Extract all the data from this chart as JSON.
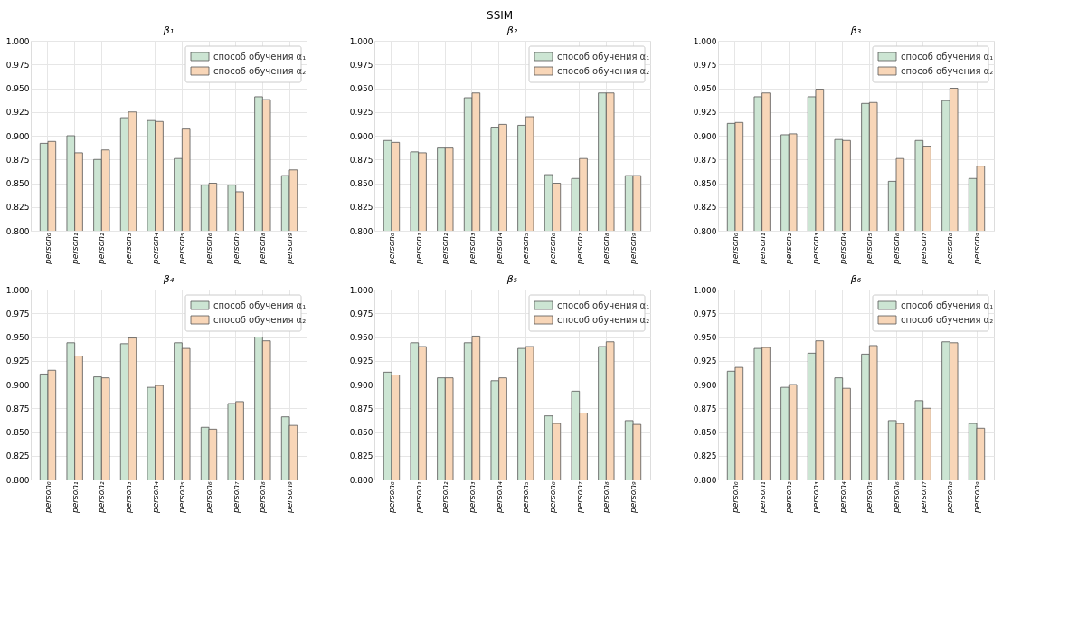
{
  "chart_data": [
    {
      "type": "bar",
      "title": "β₁",
      "annotations": [
        "SSIM"
      ],
      "categories": [
        "person₀",
        "person₁",
        "person₂",
        "person₃",
        "person₄",
        "person₅",
        "person₆",
        "person₇",
        "person₈",
        "person₉"
      ],
      "ylim": [
        0.8,
        1.0
      ],
      "yticks": [
        {
          "value": 0.8,
          "label": "0.800"
        },
        {
          "value": 0.825,
          "label": "0.825"
        },
        {
          "value": 0.85,
          "label": "0.850"
        },
        {
          "value": 0.875,
          "label": "0.875"
        },
        {
          "value": 0.9,
          "label": "0.900"
        },
        {
          "value": 0.925,
          "label": "0.925"
        },
        {
          "value": 0.95,
          "label": "0.950"
        },
        {
          "value": 0.975,
          "label": "0.975"
        },
        {
          "value": 1.0,
          "label": "1.000"
        }
      ],
      "grid": true,
      "legend": "top right",
      "series": [
        {
          "name": "способ обучения α₁",
          "color": "#cce5d3",
          "values": [
            0.892,
            0.9,
            0.875,
            0.919,
            0.916,
            0.876,
            0.848,
            0.848,
            0.941,
            0.858
          ]
        },
        {
          "name": "способ обучения α₂",
          "color": "#f8d6b8",
          "values": [
            0.894,
            0.882,
            0.885,
            0.925,
            0.915,
            0.907,
            0.85,
            0.841,
            0.938,
            0.864
          ]
        }
      ]
    },
    {
      "type": "bar",
      "title": "β₂",
      "categories": [
        "person₀",
        "person₁",
        "person₂",
        "person₃",
        "person₄",
        "person₅",
        "person₆",
        "person₇",
        "person₈",
        "person₉"
      ],
      "ylim": [
        0.8,
        1.0
      ],
      "yticks": [
        {
          "value": 0.8,
          "label": "0.800"
        },
        {
          "value": 0.825,
          "label": "0.825"
        },
        {
          "value": 0.85,
          "label": "0.850"
        },
        {
          "value": 0.875,
          "label": "0.875"
        },
        {
          "value": 0.9,
          "label": "0.900"
        },
        {
          "value": 0.925,
          "label": "0.925"
        },
        {
          "value": 0.95,
          "label": "0.950"
        },
        {
          "value": 0.975,
          "label": "0.975"
        },
        {
          "value": 1.0,
          "label": "1.000"
        }
      ],
      "grid": true,
      "legend": "top right",
      "series": [
        {
          "name": "способ обучения α₁",
          "color": "#cce5d3",
          "values": [
            0.895,
            0.883,
            0.887,
            0.94,
            0.909,
            0.911,
            0.859,
            0.855,
            0.945,
            0.858
          ]
        },
        {
          "name": "способ обучения α₂",
          "color": "#f8d6b8",
          "values": [
            0.893,
            0.882,
            0.887,
            0.945,
            0.912,
            0.92,
            0.85,
            0.876,
            0.945,
            0.858
          ]
        }
      ]
    },
    {
      "type": "bar",
      "title": "β₃",
      "categories": [
        "person₀",
        "person₁",
        "person₂",
        "person₃",
        "person₄",
        "person₅",
        "person₆",
        "person₇",
        "person₈",
        "person₉"
      ],
      "ylim": [
        0.8,
        1.0
      ],
      "yticks": [
        {
          "value": 0.8,
          "label": "0.800"
        },
        {
          "value": 0.825,
          "label": "0.825"
        },
        {
          "value": 0.85,
          "label": "0.850"
        },
        {
          "value": 0.875,
          "label": "0.875"
        },
        {
          "value": 0.9,
          "label": "0.900"
        },
        {
          "value": 0.925,
          "label": "0.925"
        },
        {
          "value": 0.95,
          "label": "0.950"
        },
        {
          "value": 0.975,
          "label": "0.975"
        },
        {
          "value": 1.0,
          "label": "1.000"
        }
      ],
      "grid": true,
      "legend": "top right",
      "series": [
        {
          "name": "способ обучения α₁",
          "color": "#cce5d3",
          "values": [
            0.913,
            0.941,
            0.901,
            0.941,
            0.896,
            0.934,
            0.852,
            0.895,
            0.937,
            0.855
          ]
        },
        {
          "name": "способ обучения α₂",
          "color": "#f8d6b8",
          "values": [
            0.914,
            0.945,
            0.902,
            0.949,
            0.895,
            0.935,
            0.876,
            0.889,
            0.95,
            0.868
          ]
        }
      ]
    },
    {
      "type": "bar",
      "title": "β₄",
      "categories": [
        "person₀",
        "person₁",
        "person₂",
        "person₃",
        "person₄",
        "person₅",
        "person₆",
        "person₇",
        "person₈",
        "person₉"
      ],
      "ylim": [
        0.8,
        1.0
      ],
      "yticks": [
        {
          "value": 0.8,
          "label": "0.800"
        },
        {
          "value": 0.825,
          "label": "0.825"
        },
        {
          "value": 0.85,
          "label": "0.850"
        },
        {
          "value": 0.875,
          "label": "0.875"
        },
        {
          "value": 0.9,
          "label": "0.900"
        },
        {
          "value": 0.925,
          "label": "0.925"
        },
        {
          "value": 0.95,
          "label": "0.950"
        },
        {
          "value": 0.975,
          "label": "0.975"
        },
        {
          "value": 1.0,
          "label": "1.000"
        }
      ],
      "grid": true,
      "legend": "top right",
      "series": [
        {
          "name": "способ обучения α₁",
          "color": "#cce5d3",
          "values": [
            0.911,
            0.944,
            0.908,
            0.943,
            0.897,
            0.944,
            0.855,
            0.88,
            0.95,
            0.866
          ]
        },
        {
          "name": "способ обучения α₂",
          "color": "#f8d6b8",
          "values": [
            0.915,
            0.93,
            0.907,
            0.949,
            0.899,
            0.938,
            0.853,
            0.882,
            0.946,
            0.857
          ]
        }
      ]
    },
    {
      "type": "bar",
      "title": "β₅",
      "categories": [
        "person₀",
        "person₁",
        "person₂",
        "person₃",
        "person₄",
        "person₅",
        "person₆",
        "person₇",
        "person₈",
        "person₉"
      ],
      "ylim": [
        0.8,
        1.0
      ],
      "yticks": [
        {
          "value": 0.8,
          "label": "0.800"
        },
        {
          "value": 0.825,
          "label": "0.825"
        },
        {
          "value": 0.85,
          "label": "0.850"
        },
        {
          "value": 0.875,
          "label": "0.875"
        },
        {
          "value": 0.9,
          "label": "0.900"
        },
        {
          "value": 0.925,
          "label": "0.925"
        },
        {
          "value": 0.95,
          "label": "0.950"
        },
        {
          "value": 0.975,
          "label": "0.975"
        },
        {
          "value": 1.0,
          "label": "1.000"
        }
      ],
      "grid": true,
      "legend": "top right",
      "series": [
        {
          "name": "способ обучения α₁",
          "color": "#cce5d3",
          "values": [
            0.913,
            0.944,
            0.907,
            0.944,
            0.904,
            0.938,
            0.867,
            0.893,
            0.94,
            0.862
          ]
        },
        {
          "name": "способ обучения α₂",
          "color": "#f8d6b8",
          "values": [
            0.91,
            0.94,
            0.907,
            0.951,
            0.907,
            0.94,
            0.859,
            0.87,
            0.945,
            0.858
          ]
        }
      ]
    },
    {
      "type": "bar",
      "title": "β₆",
      "categories": [
        "person₀",
        "person₁",
        "person₂",
        "person₃",
        "person₄",
        "person₅",
        "person₆",
        "person₇",
        "person₈",
        "person₉"
      ],
      "ylim": [
        0.8,
        1.0
      ],
      "yticks": [
        {
          "value": 0.8,
          "label": "0.800"
        },
        {
          "value": 0.825,
          "label": "0.825"
        },
        {
          "value": 0.85,
          "label": "0.850"
        },
        {
          "value": 0.875,
          "label": "0.875"
        },
        {
          "value": 0.9,
          "label": "0.900"
        },
        {
          "value": 0.925,
          "label": "0.925"
        },
        {
          "value": 0.95,
          "label": "0.950"
        },
        {
          "value": 0.975,
          "label": "0.975"
        },
        {
          "value": 1.0,
          "label": "1.000"
        }
      ],
      "grid": true,
      "legend": "top right",
      "series": [
        {
          "name": "способ обучения α₁",
          "color": "#cce5d3",
          "values": [
            0.914,
            0.938,
            0.897,
            0.933,
            0.907,
            0.932,
            0.862,
            0.883,
            0.945,
            0.859
          ]
        },
        {
          "name": "способ обучения α₂",
          "color": "#f8d6b8",
          "values": [
            0.918,
            0.939,
            0.9,
            0.946,
            0.896,
            0.941,
            0.859,
            0.875,
            0.944,
            0.854
          ]
        }
      ]
    }
  ]
}
